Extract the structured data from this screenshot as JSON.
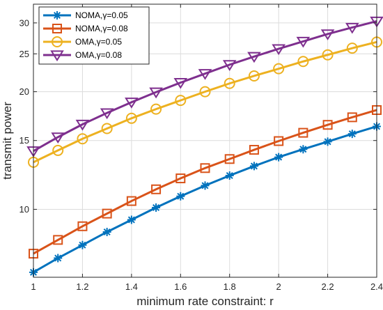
{
  "chart_data": {
    "type": "line",
    "xlabel": "minimum rate constraint: r",
    "ylabel": "transmit power",
    "xlim": [
      1,
      2.4
    ],
    "ylim": [
      6.7,
      33.5
    ],
    "yscale": "log",
    "grid": true,
    "legend_position": "top-left",
    "x": [
      1.0,
      1.1,
      1.2,
      1.3,
      1.4,
      1.5,
      1.6,
      1.7,
      1.8,
      1.9,
      2.0,
      2.1,
      2.2,
      2.3,
      2.4
    ],
    "xticks": [
      "1",
      "1.2",
      "1.4",
      "1.6",
      "1.8",
      "2",
      "2.2",
      "2.4"
    ],
    "xtick_values": [
      1,
      1.2,
      1.4,
      1.6,
      1.8,
      2,
      2.2,
      2.4
    ],
    "yticks": [
      "10",
      "15",
      "20",
      "25",
      "30"
    ],
    "ytick_values": [
      10,
      15,
      20,
      25,
      30
    ],
    "series": [
      {
        "name": "NOMA,γ=0.05",
        "color": "#0072BD",
        "marker": "asterisk",
        "values": [
          6.9,
          7.5,
          8.1,
          8.75,
          9.4,
          10.1,
          10.8,
          11.5,
          12.2,
          12.9,
          13.6,
          14.25,
          14.9,
          15.6,
          16.3
        ]
      },
      {
        "name": "NOMA,γ=0.08",
        "color": "#D95319",
        "marker": "square",
        "values": [
          7.7,
          8.35,
          9.05,
          9.75,
          10.5,
          11.25,
          12.0,
          12.75,
          13.45,
          14.2,
          14.95,
          15.7,
          16.45,
          17.2,
          17.95
        ]
      },
      {
        "name": "OMA,γ=0.05",
        "color": "#EDB120",
        "marker": "circle",
        "values": [
          13.2,
          14.15,
          15.15,
          16.1,
          17.1,
          18.05,
          19.0,
          20.0,
          21.0,
          21.95,
          22.9,
          23.9,
          24.85,
          25.85,
          26.8
        ]
      },
      {
        "name": "OMA,γ=0.08",
        "color": "#7E2F8E",
        "marker": "triangle-down",
        "values": [
          14.1,
          15.3,
          16.5,
          17.65,
          18.8,
          19.95,
          21.1,
          22.25,
          23.45,
          24.6,
          25.75,
          26.9,
          28.1,
          29.2,
          30.3
        ]
      }
    ]
  }
}
